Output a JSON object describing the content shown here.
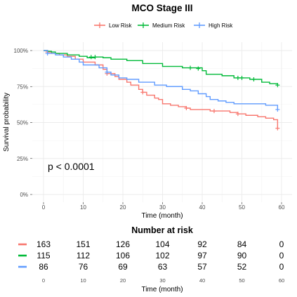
{
  "chart_data": [
    {
      "type": "line",
      "chart_kind": "kaplan-meier",
      "title": "MCO Stage III",
      "xlabel": "Time (month)",
      "ylabel": "Survival probability",
      "xlim": [
        0,
        60
      ],
      "ylim": [
        0,
        1
      ],
      "x_ticks": [
        0,
        10,
        20,
        30,
        40,
        50,
        60
      ],
      "y_ticks": [
        "0%",
        "25%",
        "50%",
        "75%",
        "100%"
      ],
      "y_tick_values": [
        0,
        0.25,
        0.5,
        0.75,
        1.0
      ],
      "grid": true,
      "legend_position": "top",
      "annotation": "p < 0.0001",
      "annotation_pos": [
        1,
        0.19
      ],
      "series": [
        {
          "name": "Low Risk",
          "color": "#F8766D",
          "steps": [
            [
              0,
              1.0
            ],
            [
              1,
              0.99
            ],
            [
              2,
              0.98
            ],
            [
              4,
              0.97
            ],
            [
              6,
              0.96
            ],
            [
              8,
              0.94
            ],
            [
              10,
              0.92
            ],
            [
              13,
              0.9
            ],
            [
              15,
              0.87
            ],
            [
              16,
              0.84
            ],
            [
              18,
              0.82
            ],
            [
              19,
              0.8
            ],
            [
              21,
              0.78
            ],
            [
              22,
              0.76
            ],
            [
              24,
              0.73
            ],
            [
              25,
              0.71
            ],
            [
              26,
              0.69
            ],
            [
              28,
              0.67
            ],
            [
              29,
              0.66
            ],
            [
              30,
              0.63
            ],
            [
              32,
              0.62
            ],
            [
              34,
              0.61
            ],
            [
              36,
              0.6
            ],
            [
              37,
              0.59
            ],
            [
              42,
              0.58
            ],
            [
              45,
              0.58
            ],
            [
              47,
              0.57
            ],
            [
              49,
              0.56
            ],
            [
              51,
              0.55
            ],
            [
              54,
              0.54
            ],
            [
              56,
              0.53
            ],
            [
              58,
              0.52
            ],
            [
              59,
              0.46
            ]
          ],
          "censors": [
            [
              1,
              0.99
            ],
            [
              16,
              0.84
            ],
            [
              25,
              0.71
            ],
            [
              36,
              0.6
            ],
            [
              43,
              0.58
            ],
            [
              49,
              0.56
            ],
            [
              59,
              0.46
            ]
          ]
        },
        {
          "name": "Medium Risk",
          "color": "#00BA38",
          "steps": [
            [
              0,
              1.0
            ],
            [
              1,
              0.995
            ],
            [
              2,
              0.99
            ],
            [
              3,
              0.98
            ],
            [
              6,
              0.97
            ],
            [
              9,
              0.96
            ],
            [
              11,
              0.95
            ],
            [
              13,
              0.955
            ],
            [
              15,
              0.95
            ],
            [
              17,
              0.94
            ],
            [
              21,
              0.93
            ],
            [
              25,
              0.91
            ],
            [
              30,
              0.89
            ],
            [
              35,
              0.88
            ],
            [
              40,
              0.86
            ],
            [
              41,
              0.835
            ],
            [
              45,
              0.825
            ],
            [
              48,
              0.81
            ],
            [
              52,
              0.8
            ],
            [
              55,
              0.78
            ],
            [
              57,
              0.77
            ],
            [
              59,
              0.76
            ]
          ],
          "censors": [
            [
              12,
              0.955
            ],
            [
              13,
              0.955
            ],
            [
              37,
              0.88
            ],
            [
              39,
              0.875
            ],
            [
              49,
              0.81
            ],
            [
              50,
              0.81
            ],
            [
              53,
              0.8
            ],
            [
              59,
              0.76
            ]
          ]
        },
        {
          "name": "High Risk",
          "color": "#619CFF",
          "steps": [
            [
              0,
              1.0
            ],
            [
              1,
              0.98
            ],
            [
              3,
              0.97
            ],
            [
              5,
              0.955
            ],
            [
              7,
              0.94
            ],
            [
              9,
              0.92
            ],
            [
              10,
              0.9
            ],
            [
              14,
              0.88
            ],
            [
              16,
              0.85
            ],
            [
              17,
              0.83
            ],
            [
              19,
              0.81
            ],
            [
              21,
              0.8
            ],
            [
              24,
              0.78
            ],
            [
              28,
              0.76
            ],
            [
              31,
              0.75
            ],
            [
              35,
              0.73
            ],
            [
              37,
              0.72
            ],
            [
              39,
              0.7
            ],
            [
              41,
              0.68
            ],
            [
              42,
              0.66
            ],
            [
              44,
              0.65
            ],
            [
              46,
              0.64
            ],
            [
              48,
              0.63
            ],
            [
              56,
              0.62
            ],
            [
              59,
              0.59
            ]
          ],
          "censors": [
            [
              1,
              0.98
            ],
            [
              16,
              0.85
            ],
            [
              59,
              0.59
            ]
          ]
        }
      ]
    },
    {
      "type": "table",
      "title": "Number at risk",
      "xlabel": "Time (month)",
      "x_ticks": [
        0,
        10,
        20,
        30,
        40,
        50,
        60
      ],
      "rows": [
        {
          "name": "Low Risk",
          "color": "#F8766D",
          "values": [
            163,
            151,
            126,
            104,
            92,
            84,
            0
          ]
        },
        {
          "name": "Medium Risk",
          "color": "#00BA38",
          "values": [
            115,
            112,
            106,
            102,
            97,
            90,
            0
          ]
        },
        {
          "name": "High Risk",
          "color": "#619CFF",
          "values": [
            86,
            76,
            69,
            63,
            57,
            52,
            0
          ]
        }
      ]
    }
  ]
}
